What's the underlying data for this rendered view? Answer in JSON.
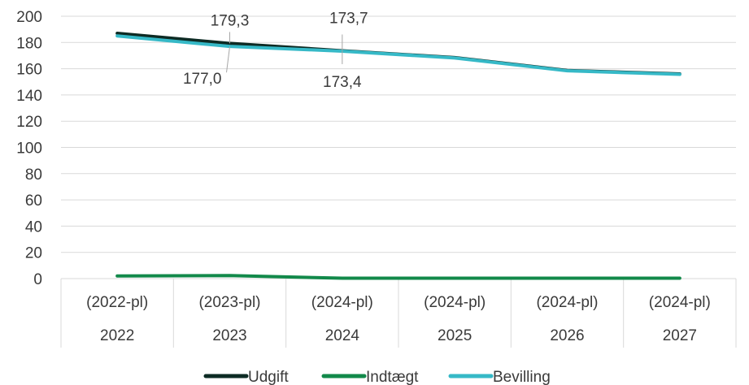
{
  "chart_data": {
    "type": "line",
    "title": "",
    "xlabel": "",
    "ylabel": "",
    "ylim": [
      0,
      200
    ],
    "yticks": [
      "0",
      "20",
      "40",
      "60",
      "80",
      "100",
      "120",
      "140",
      "160",
      "180",
      "200"
    ],
    "grid": true,
    "legend_position": "bottom",
    "categories": [
      {
        "top": "(2022-pl)",
        "bottom": "2022"
      },
      {
        "top": "(2023-pl)",
        "bottom": "2023"
      },
      {
        "top": "(2024-pl)",
        "bottom": "2024"
      },
      {
        "top": "(2024-pl)",
        "bottom": "2025"
      },
      {
        "top": "(2024-pl)",
        "bottom": "2026"
      },
      {
        "top": "(2024-pl)",
        "bottom": "2027"
      }
    ],
    "series": [
      {
        "name": "Udgift",
        "color": "#0d2b24",
        "values": [
          187.0,
          179.3,
          173.7,
          168.5,
          158.7,
          156.0
        ]
      },
      {
        "name": "Indtægt",
        "color": "#12894a",
        "values": [
          2.0,
          2.3,
          0.3,
          0.3,
          0.3,
          0.3
        ]
      },
      {
        "name": "Bevilling",
        "color": "#36b9c7",
        "values": [
          185.0,
          177.0,
          173.4,
          168.2,
          158.4,
          155.7
        ]
      }
    ],
    "annotations": [
      {
        "text": "179,3",
        "series": 0,
        "index": 1
      },
      {
        "text": "177,0",
        "series": 2,
        "index": 1
      },
      {
        "text": "173,7",
        "series": 0,
        "index": 2
      },
      {
        "text": "173,4",
        "series": 2,
        "index": 2
      }
    ]
  }
}
